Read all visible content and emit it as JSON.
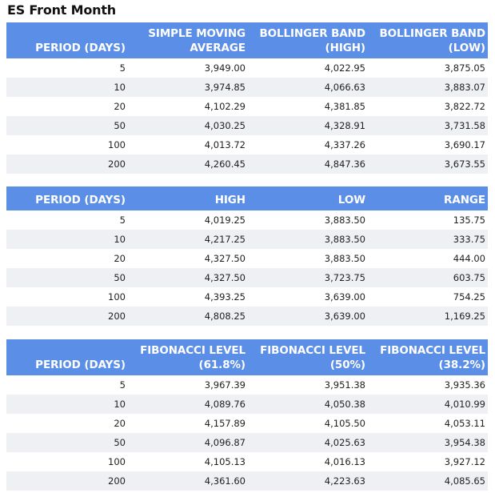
{
  "title": "ES Front Month",
  "tables": [
    {
      "headers": [
        "PERIOD (DAYS)",
        "SIMPLE MOVING AVERAGE",
        "BOLLINGER BAND (HIGH)",
        "BOLLINGER BAND (LOW)"
      ],
      "header_lines": [
        [
          "PERIOD (DAYS)"
        ],
        [
          "SIMPLE MOVING",
          "AVERAGE"
        ],
        [
          "BOLLINGER BAND",
          "(HIGH)"
        ],
        [
          "BOLLINGER BAND",
          "(LOW)"
        ]
      ],
      "rows": [
        [
          "5",
          "3,949.00",
          "4,022.95",
          "3,875.05"
        ],
        [
          "10",
          "3,974.85",
          "4,066.63",
          "3,883.07"
        ],
        [
          "20",
          "4,102.29",
          "4,381.85",
          "3,822.72"
        ],
        [
          "50",
          "4,030.25",
          "4,328.91",
          "3,731.58"
        ],
        [
          "100",
          "4,013.72",
          "4,337.26",
          "3,690.17"
        ],
        [
          "200",
          "4,260.45",
          "4,847.36",
          "3,673.55"
        ]
      ]
    },
    {
      "headers": [
        "PERIOD (DAYS)",
        "HIGH",
        "LOW",
        "RANGE"
      ],
      "header_lines": [
        [
          "PERIOD (DAYS)"
        ],
        [
          "HIGH"
        ],
        [
          "LOW"
        ],
        [
          "RANGE"
        ]
      ],
      "rows": [
        [
          "5",
          "4,019.25",
          "3,883.50",
          "135.75"
        ],
        [
          "10",
          "4,217.25",
          "3,883.50",
          "333.75"
        ],
        [
          "20",
          "4,327.50",
          "3,883.50",
          "444.00"
        ],
        [
          "50",
          "4,327.50",
          "3,723.75",
          "603.75"
        ],
        [
          "100",
          "4,393.25",
          "3,639.00",
          "754.25"
        ],
        [
          "200",
          "4,808.25",
          "3,639.00",
          "1,169.25"
        ]
      ]
    },
    {
      "headers": [
        "PERIOD (DAYS)",
        "FIBONACCI LEVEL (61.8%)",
        "FIBONACCI LEVEL (50%)",
        "FIBONACCI LEVEL (38.2%)"
      ],
      "header_lines": [
        [
          "PERIOD (DAYS)"
        ],
        [
          "FIBONACCI LEVEL",
          "(61.8%)"
        ],
        [
          "FIBONACCI LEVEL",
          "(50%)"
        ],
        [
          "FIBONACCI LEVEL",
          "(38.2%)"
        ]
      ],
      "rows": [
        [
          "5",
          "3,967.39",
          "3,951.38",
          "3,935.36"
        ],
        [
          "10",
          "4,089.76",
          "4,050.38",
          "4,010.99"
        ],
        [
          "20",
          "4,157.89",
          "4,105.50",
          "4,053.11"
        ],
        [
          "50",
          "4,096.87",
          "4,025.63",
          "3,954.38"
        ],
        [
          "100",
          "4,105.13",
          "4,016.13",
          "3,927.12"
        ],
        [
          "200",
          "4,361.60",
          "4,223.63",
          "4,085.65"
        ]
      ]
    }
  ],
  "colors": {
    "header_bg": "#5b8ee6",
    "header_text": "#ffffff",
    "stripe_bg": "#eef0f3"
  }
}
